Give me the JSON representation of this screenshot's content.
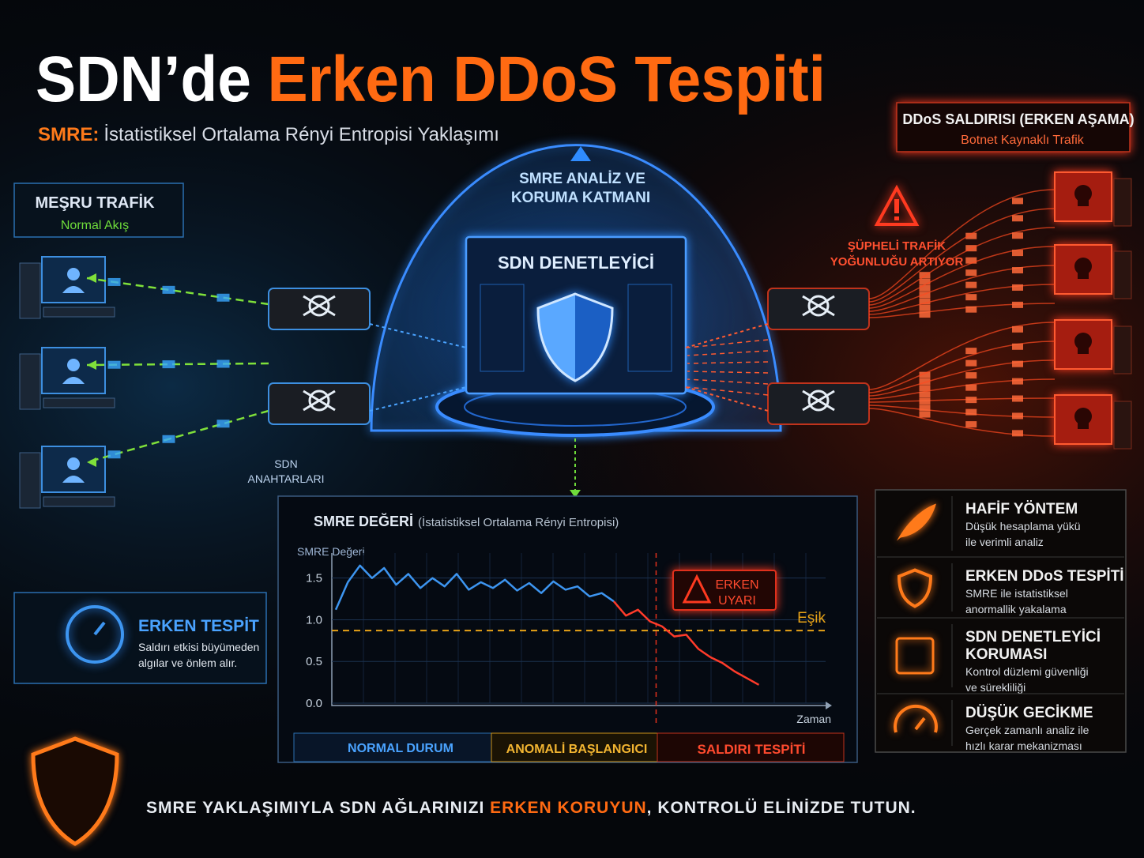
{
  "header": {
    "title_white": "SDN’de",
    "title_orange": "Erken DDoS Tespiti",
    "subtitle_prefix": "SMRE:",
    "subtitle": "İstatistiksel Ortalama Rényi Entropisi Yaklaşımı"
  },
  "legit_box": {
    "title": "MEŞRU TRAFİK",
    "subtitle": "Normal Akış"
  },
  "attack_box": {
    "title": "DDoS SALDIRISI (ERKEN AŞAMA)",
    "subtitle": "Botnet Kaynaklı Trafik"
  },
  "dome": {
    "label_lines": [
      "SMRE ANALİZ VE",
      "KORUMA KATMANI"
    ],
    "controller": "SDN DENETLEYİCİ"
  },
  "warning": {
    "lines": [
      "ŞÜPHELİ TRAFİK",
      "YOĞUNLUĞU ARTIYOR"
    ]
  },
  "switches": {
    "lines": [
      "SDN",
      "ANAHTARLARI"
    ]
  },
  "early_box": {
    "title": "ERKEN TESPİT",
    "lines": [
      "Saldırı etkisi büyümeden",
      "algılar ve önlem alır."
    ]
  },
  "features": [
    {
      "title_lines": [
        "HAFİF YÖNTEM"
      ],
      "desc_lines": [
        "Düşük hesaplama yükü",
        "ile verimli analiz"
      ]
    },
    {
      "title_lines": [
        "ERKEN DDoS TESPİTİ"
      ],
      "desc_lines": [
        "SMRE ile istatistiksel",
        "anormallik yakalama"
      ]
    },
    {
      "title_lines": [
        "SDN DENETLEYİCİ",
        "KORUMASI"
      ],
      "desc_lines": [
        "Kontrol düzlemi güvenliği",
        "ve sürekliliği"
      ]
    },
    {
      "title_lines": [
        "DÜŞÜK GECİKME"
      ],
      "desc_lines": [
        "Gerçek zamanlı analiz ile",
        "hızlı karar mekanizması"
      ]
    }
  ],
  "chart_data": {
    "type": "line",
    "title": "SMRE DEĞERİ",
    "subtitle": "(İstatistiksel Ortalama Rényi Entropisi)",
    "ylabel": "SMRE Değeri",
    "xlabel": "Zaman",
    "ylim": [
      0,
      1.8
    ],
    "yticks": [
      {
        "value": 0,
        "label": "0.0"
      },
      0.5,
      {
        "value": 1,
        "label": "1.0"
      },
      1.5
    ],
    "grid": true,
    "series": [
      {
        "color": "#3d95f0",
        "values": [
          1.12,
          1.45,
          1.65,
          1.5,
          1.62,
          1.42,
          1.55,
          1.38,
          1.5,
          1.4,
          1.55,
          1.36,
          1.45,
          1.38,
          1.48,
          1.35,
          1.44,
          1.32,
          1.46,
          1.36,
          1.4,
          1.28,
          1.32,
          1.22,
          null,
          null,
          null,
          null,
          null,
          null,
          null,
          null,
          null,
          null,
          null,
          null
        ]
      },
      {
        "color": "#ff3b2a",
        "values": [
          null,
          null,
          null,
          null,
          null,
          null,
          null,
          null,
          null,
          null,
          null,
          null,
          null,
          null,
          null,
          null,
          null,
          null,
          null,
          null,
          null,
          null,
          null,
          1.22,
          1.05,
          1.12,
          0.98,
          0.92,
          0.8,
          0.82,
          0.65,
          0.55,
          0.48,
          0.38,
          0.3,
          0.22
        ]
      }
    ],
    "threshold": {
      "value": 0.87,
      "label": "Eşik",
      "color": "#e8a317"
    },
    "alert": {
      "index": 26.5,
      "lines": [
        "ERKEN",
        "UYARI"
      ]
    },
    "phases": [
      "NORMAL DURUM",
      "ANOMALİ BAŞLANGICI",
      "SALDIRI TESPİTİ"
    ]
  },
  "footer": {
    "part1": "SMRE YAKLAŞIMIYLA SDN AĞLARINIZI ",
    "part2": "ERKEN KORUYUN",
    "part3": ", KONTROLÜ ELİNİZDE TUTUN."
  }
}
